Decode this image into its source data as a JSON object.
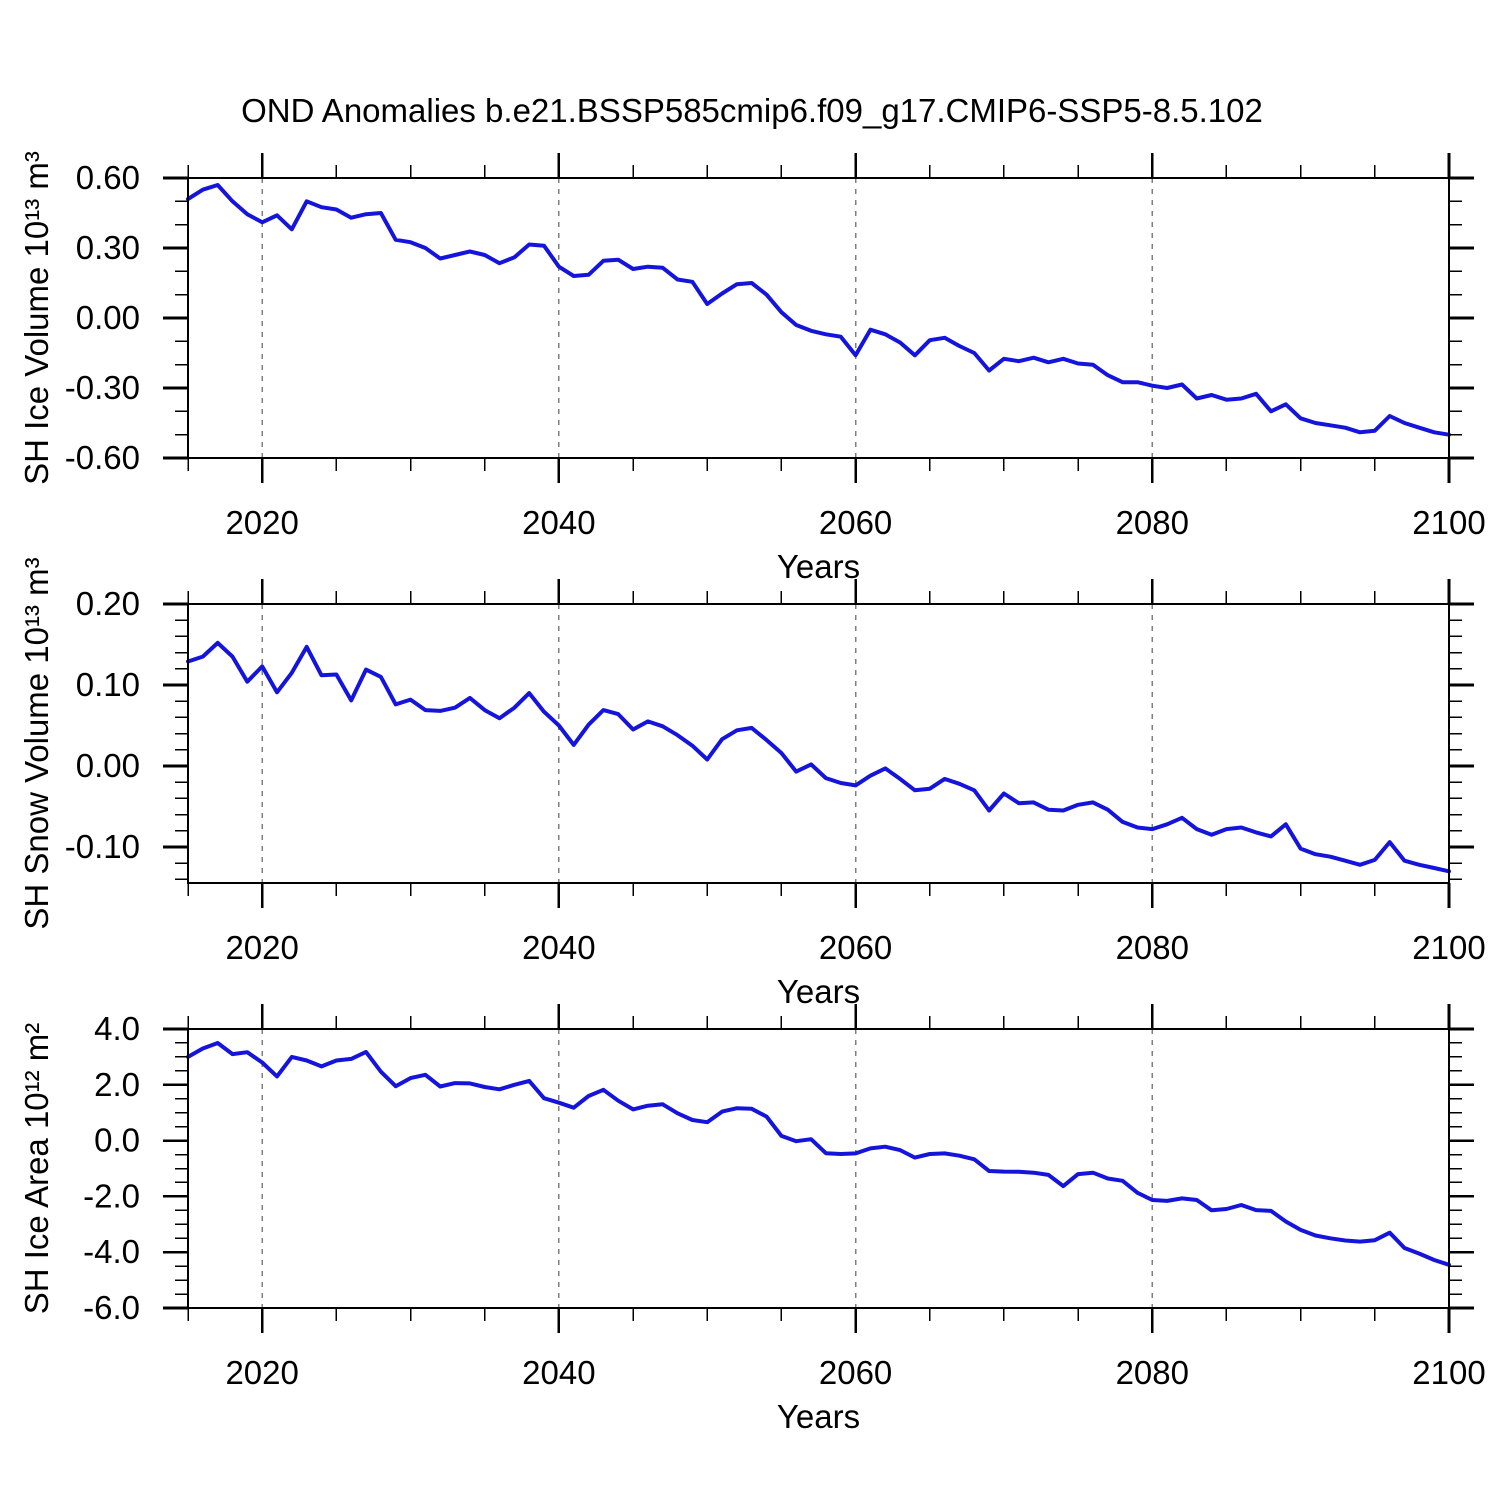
{
  "title": "OND Anomalies b.e21.BSSP585cmip6.f09_g17.CMIP6-SSP5-8.5.102",
  "x_axis": {
    "label": "Years",
    "start_year": 2015,
    "end_year": 2100,
    "major_tick_years": [
      2020,
      2040,
      2060,
      2080,
      2100
    ],
    "major_tick_labels": [
      "2020",
      "2040",
      "2060",
      "2080",
      "2100"
    ],
    "minor_tick_step_years": 5,
    "grid_years": [
      2020,
      2040,
      2060,
      2080
    ]
  },
  "style": {
    "line_color": "#1414dc",
    "frame_color": "#000000",
    "grid_color": "#7f7f7f",
    "background": "#ffffff",
    "text_color": "#000000"
  },
  "chart_data": [
    {
      "type": "line",
      "name": "sh-ice-volume",
      "ylabel": "SH Ice Volume 10¹³ m³",
      "ylim": [
        -0.6,
        0.6
      ],
      "y_major_ticks": [
        0.6,
        0.3,
        0.0,
        -0.3,
        -0.6
      ],
      "y_tick_labels": [
        "0.60",
        "0.30",
        "0.00",
        "-0.30",
        "-0.60"
      ],
      "y_minor_step": 0.1,
      "x_start": 2015,
      "x_step": 1,
      "grid": "x-dashed",
      "legend": "none",
      "values": [
        0.51,
        0.55,
        0.57,
        0.5,
        0.445,
        0.41,
        0.44,
        0.38,
        0.5,
        0.475,
        0.465,
        0.43,
        0.445,
        0.45,
        0.335,
        0.325,
        0.3,
        0.255,
        0.27,
        0.285,
        0.27,
        0.235,
        0.26,
        0.315,
        0.31,
        0.22,
        0.18,
        0.185,
        0.245,
        0.25,
        0.21,
        0.22,
        0.215,
        0.165,
        0.155,
        0.06,
        0.105,
        0.145,
        0.15,
        0.1,
        0.025,
        -0.03,
        -0.055,
        -0.07,
        -0.08,
        -0.16,
        -0.05,
        -0.07,
        -0.105,
        -0.16,
        -0.095,
        -0.085,
        -0.12,
        -0.15,
        -0.225,
        -0.175,
        -0.185,
        -0.17,
        -0.19,
        -0.175,
        -0.195,
        -0.2,
        -0.245,
        -0.275,
        -0.275,
        -0.29,
        -0.3,
        -0.285,
        -0.345,
        -0.33,
        -0.35,
        -0.345,
        -0.325,
        -0.4,
        -0.37,
        -0.43,
        -0.45,
        -0.46,
        -0.47,
        -0.49,
        -0.483,
        -0.42,
        -0.45,
        -0.47,
        -0.49,
        -0.5
      ]
    },
    {
      "type": "line",
      "name": "sh-snow-volume",
      "ylabel": "SH Snow Volume 10¹³ m³",
      "ylim": [
        -0.1445,
        0.2
      ],
      "y_major_ticks": [
        0.2,
        0.1,
        0.0,
        -0.1
      ],
      "y_tick_labels": [
        "0.20",
        "0.10",
        "0.00",
        "-0.10"
      ],
      "y_minor_step": 0.02,
      "x_start": 2015,
      "x_step": 1,
      "grid": "x-dashed",
      "legend": "none",
      "values": [
        0.129,
        0.135,
        0.152,
        0.135,
        0.104,
        0.123,
        0.091,
        0.115,
        0.147,
        0.112,
        0.113,
        0.081,
        0.119,
        0.11,
        0.076,
        0.082,
        0.069,
        0.068,
        0.072,
        0.084,
        0.069,
        0.059,
        0.072,
        0.09,
        0.067,
        0.05,
        0.026,
        0.051,
        0.069,
        0.064,
        0.045,
        0.055,
        0.049,
        0.038,
        0.025,
        0.008,
        0.033,
        0.044,
        0.047,
        0.032,
        0.016,
        -0.007,
        0.002,
        -0.015,
        -0.021,
        -0.024,
        -0.012,
        -0.003,
        -0.016,
        -0.03,
        -0.028,
        -0.016,
        -0.022,
        -0.03,
        -0.055,
        -0.034,
        -0.046,
        -0.045,
        -0.054,
        -0.055,
        -0.048,
        -0.045,
        -0.054,
        -0.069,
        -0.076,
        -0.078,
        -0.072,
        -0.064,
        -0.078,
        -0.085,
        -0.078,
        -0.076,
        -0.082,
        -0.087,
        -0.072,
        -0.102,
        -0.109,
        -0.112,
        -0.117,
        -0.122,
        -0.116,
        -0.094,
        -0.117,
        -0.122,
        -0.126,
        -0.13
      ]
    },
    {
      "type": "line",
      "name": "sh-ice-area",
      "ylabel": "SH Ice Area 10¹² m²",
      "ylim": [
        -6.0,
        4.0
      ],
      "y_major_ticks": [
        4.0,
        2.0,
        0.0,
        -2.0,
        -4.0,
        -6.0
      ],
      "y_tick_labels": [
        "4.0",
        "2.0",
        "0.0",
        "-2.0",
        "-4.0",
        "-6.0"
      ],
      "y_minor_step": 0.5,
      "x_start": 2015,
      "x_step": 1,
      "grid": "x-dashed",
      "legend": "none",
      "values": [
        3.0,
        3.3,
        3.5,
        3.1,
        3.17,
        2.8,
        2.3,
        3.0,
        2.87,
        2.66,
        2.87,
        2.93,
        3.18,
        2.47,
        1.95,
        2.24,
        2.36,
        1.94,
        2.06,
        2.05,
        1.92,
        1.84,
        2.0,
        2.14,
        1.52,
        1.36,
        1.18,
        1.6,
        1.82,
        1.43,
        1.12,
        1.25,
        1.3,
        0.98,
        0.74,
        0.66,
        1.04,
        1.16,
        1.14,
        0.86,
        0.17,
        -0.02,
        0.05,
        -0.45,
        -0.48,
        -0.46,
        -0.28,
        -0.22,
        -0.34,
        -0.61,
        -0.48,
        -0.46,
        -0.54,
        -0.67,
        -1.09,
        -1.11,
        -1.12,
        -1.15,
        -1.23,
        -1.63,
        -1.2,
        -1.15,
        -1.36,
        -1.44,
        -1.87,
        -2.13,
        -2.16,
        -2.07,
        -2.13,
        -2.5,
        -2.45,
        -2.31,
        -2.49,
        -2.52,
        -2.9,
        -3.2,
        -3.4,
        -3.5,
        -3.58,
        -3.62,
        -3.57,
        -3.3,
        -3.85,
        -4.05,
        -4.28,
        -4.45
      ]
    }
  ]
}
